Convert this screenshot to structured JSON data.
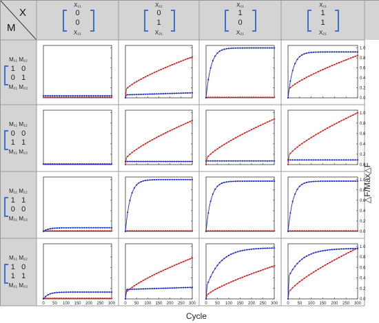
{
  "corner": {
    "m": "M",
    "x": "X"
  },
  "col_headers": [
    {
      "top": "X₁₁",
      "v1": "0",
      "v2": "0",
      "bottom": "X₂₁"
    },
    {
      "top": "X₁₁",
      "v1": "0",
      "v2": "1",
      "bottom": "X₂₁"
    },
    {
      "top": "X₁₁",
      "v1": "1",
      "v2": "0",
      "bottom": "X₂₁"
    },
    {
      "top": "X₁₁",
      "v1": "1",
      "v2": "1",
      "bottom": "X₂₁"
    }
  ],
  "row_headers": [
    {
      "top": "M₁₁  M₁₂",
      "r1": "1   0",
      "r2": "0   1",
      "bottom": "M₂₁  M₂₂"
    },
    {
      "top": "M₁₁  M₁₂",
      "r1": "0   0",
      "r2": "1   1",
      "bottom": "M₂₁  M₂₂"
    },
    {
      "top": "M₁₁  M₁₂",
      "r1": "1   1",
      "r2": "0   0",
      "bottom": "M₂₁  M₂₂"
    },
    {
      "top": "M₁₁  M₁₂",
      "r1": "1   0",
      "r2": "1   1",
      "bottom": "M₂₁  M₂₂"
    }
  ],
  "chart_data": {
    "type": "line",
    "xlabel": "Cycle",
    "ylabel": "△F/Max△F",
    "xlim": [
      0,
      300
    ],
    "ylim": [
      0,
      1.05
    ],
    "xticks": [
      0,
      50,
      100,
      150,
      200,
      250,
      300
    ],
    "yticks": [
      0.0,
      0.2,
      0.4,
      0.6,
      0.8,
      1.0
    ],
    "colors": {
      "blue": "#1f2fbf",
      "red": "#d42020"
    },
    "panels": [
      [
        {
          "blue": {
            "shape": "flat",
            "level": 0.04
          },
          "red": {
            "shape": "flat",
            "level": 0.01
          }
        },
        {
          "blue": {
            "shape": "jumplin",
            "jump": 0.06,
            "end": 0.1
          },
          "red": {
            "shape": "jumppow",
            "jump": 0.15,
            "end": 0.82
          }
        },
        {
          "blue": {
            "shape": "sat",
            "end": 1.0
          },
          "red": {
            "shape": "flat",
            "level": 0.01
          }
        },
        {
          "blue": {
            "shape": "sat",
            "end": 0.92
          },
          "red": {
            "shape": "jumppow",
            "jump": 0.15,
            "end": 0.85
          }
        }
      ],
      [
        {
          "blue": {
            "shape": "flat",
            "level": 0.01
          },
          "red": {
            "shape": "flat",
            "level": 0.01
          }
        },
        {
          "blue": {
            "shape": "flat",
            "level": 0.06
          },
          "red": {
            "shape": "jumppow",
            "jump": 0.1,
            "end": 0.85
          }
        },
        {
          "blue": {
            "shape": "flat",
            "level": 0.07
          },
          "red": {
            "shape": "jumppow",
            "jump": 0.1,
            "end": 0.88
          }
        },
        {
          "blue": {
            "shape": "flat",
            "level": 0.09
          },
          "red": {
            "shape": "jumppow",
            "jump": 0.15,
            "end": 1.0
          }
        }
      ],
      [
        {
          "blue": {
            "shape": "sat",
            "end": 0.07
          },
          "red": {
            "shape": "flat",
            "level": 0.01
          }
        },
        {
          "blue": {
            "shape": "sat",
            "end": 1.0
          },
          "red": {
            "shape": "flat",
            "level": 0.01
          }
        },
        {
          "blue": {
            "shape": "sat",
            "end": 0.97
          },
          "red": {
            "shape": "flat",
            "level": 0.01
          }
        },
        {
          "blue": {
            "shape": "sat",
            "end": 0.97
          },
          "red": {
            "shape": "flat",
            "level": 0.01
          }
        }
      ],
      [
        {
          "blue": {
            "shape": "sat",
            "end": 0.13
          },
          "red": {
            "shape": "flat",
            "level": 0.01
          }
        },
        {
          "blue": {
            "shape": "jumplin",
            "jump": 0.18,
            "end": 0.22
          },
          "red": {
            "shape": "jumppow",
            "jump": 0.1,
            "end": 0.78
          }
        },
        {
          "blue": {
            "shape": "jumplog",
            "jump": 0.2,
            "end": 0.97
          },
          "red": {
            "shape": "jumppow",
            "jump": 0.05,
            "end": 0.63
          }
        },
        {
          "blue": {
            "shape": "jumplog",
            "jump": 0.4,
            "end": 0.96
          },
          "red": {
            "shape": "jumppow",
            "jump": 0.1,
            "end": 0.97
          }
        }
      ]
    ]
  }
}
